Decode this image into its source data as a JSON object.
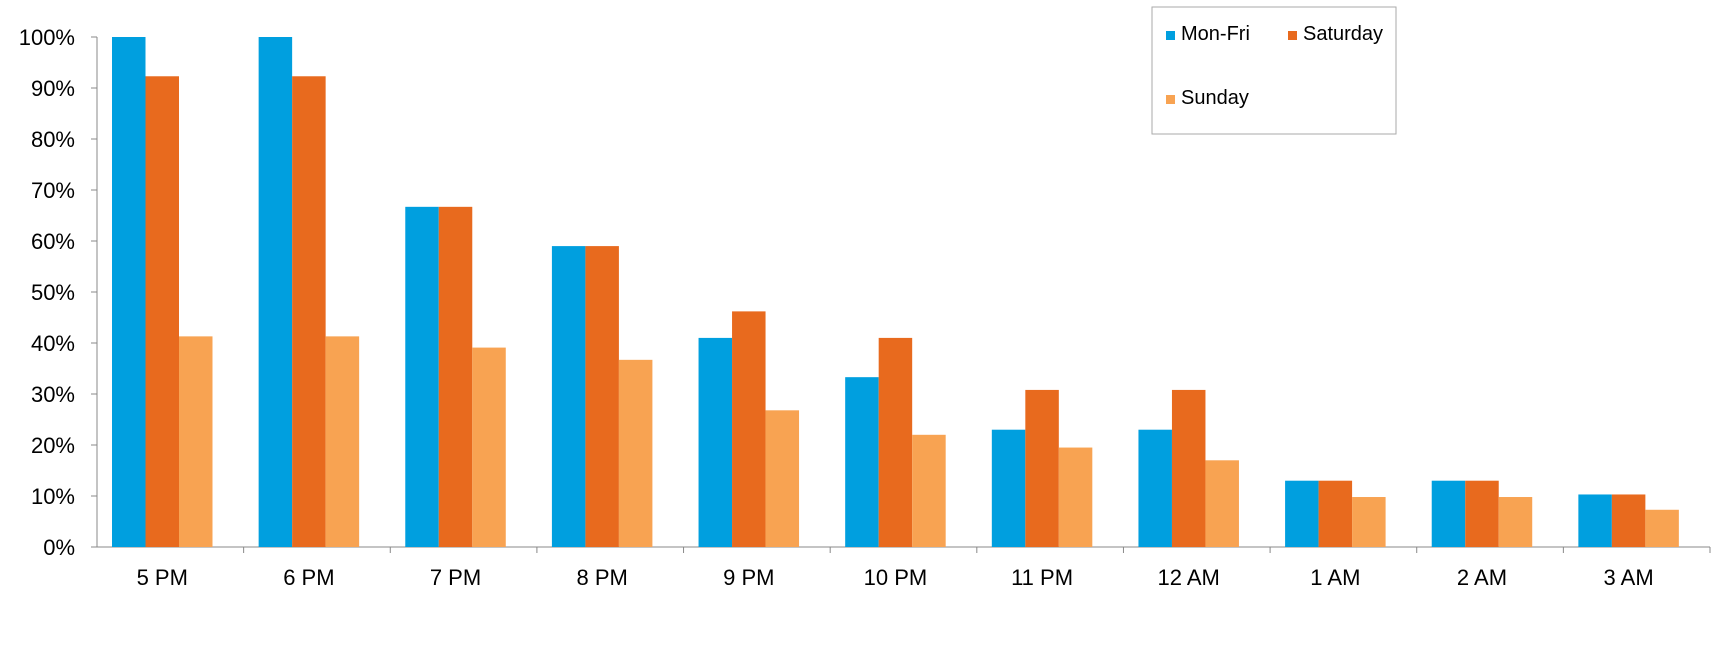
{
  "chart_data": {
    "type": "bar",
    "categories": [
      "5 PM",
      "6 PM",
      "7 PM",
      "8 PM",
      "9 PM",
      "10 PM",
      "11 PM",
      "12 AM",
      "1 AM",
      "2 AM",
      "3 AM"
    ],
    "series": [
      {
        "name": "Mon-Fri",
        "color": "#009FDF",
        "values": [
          100,
          100,
          66.7,
          59,
          41,
          33.3,
          23,
          23,
          13,
          13,
          10.3
        ]
      },
      {
        "name": "Saturday",
        "color": "#E86A1E",
        "values": [
          92.3,
          92.3,
          66.7,
          59,
          46.2,
          41,
          30.8,
          30.8,
          13,
          13,
          10.3
        ]
      },
      {
        "name": "Sunday",
        "color": "#F8A352",
        "values": [
          41.3,
          41.3,
          39.1,
          36.7,
          26.8,
          22,
          19.5,
          17,
          9.8,
          9.8,
          7.3
        ]
      }
    ],
    "ylim": [
      0,
      100
    ],
    "yticks": [
      "0%",
      "10%",
      "20%",
      "30%",
      "40%",
      "50%",
      "60%",
      "70%",
      "80%",
      "90%",
      "100%"
    ],
    "ytick_values": [
      0,
      10,
      20,
      30,
      40,
      50,
      60,
      70,
      80,
      90,
      100
    ],
    "title": "",
    "xlabel": "",
    "ylabel": "",
    "grid": false,
    "legend": {
      "position": "top-right",
      "columns": 2
    }
  }
}
